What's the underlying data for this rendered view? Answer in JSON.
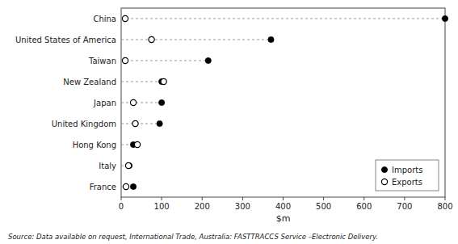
{
  "chart_data": {
    "type": "dot",
    "orientation": "horizontal",
    "categories": [
      "China",
      "United States of America",
      "Taiwan",
      "New Zealand",
      "Japan",
      "United Kingdom",
      "Hong Kong",
      "Italy",
      "France"
    ],
    "series": [
      {
        "name": "Imports",
        "color": "black",
        "marker": "filled",
        "values": [
          800,
          370,
          215,
          100,
          100,
          95,
          30,
          20,
          30
        ]
      },
      {
        "name": "Exports",
        "color": "black",
        "marker": "open",
        "values": [
          10,
          75,
          10,
          105,
          30,
          35,
          40,
          18,
          12
        ]
      }
    ],
    "xlabel": "$m",
    "xlim": [
      0,
      800
    ],
    "xticks": [
      0,
      100,
      200,
      300,
      400,
      500,
      600,
      700,
      800
    ],
    "line_style": "dashed",
    "legend": "lower right",
    "grid": false,
    "annotations": [
      "Source:  Data available on request, International Trade, Australia:  FASTTRACCS Service –Electronic Delivery."
    ]
  }
}
